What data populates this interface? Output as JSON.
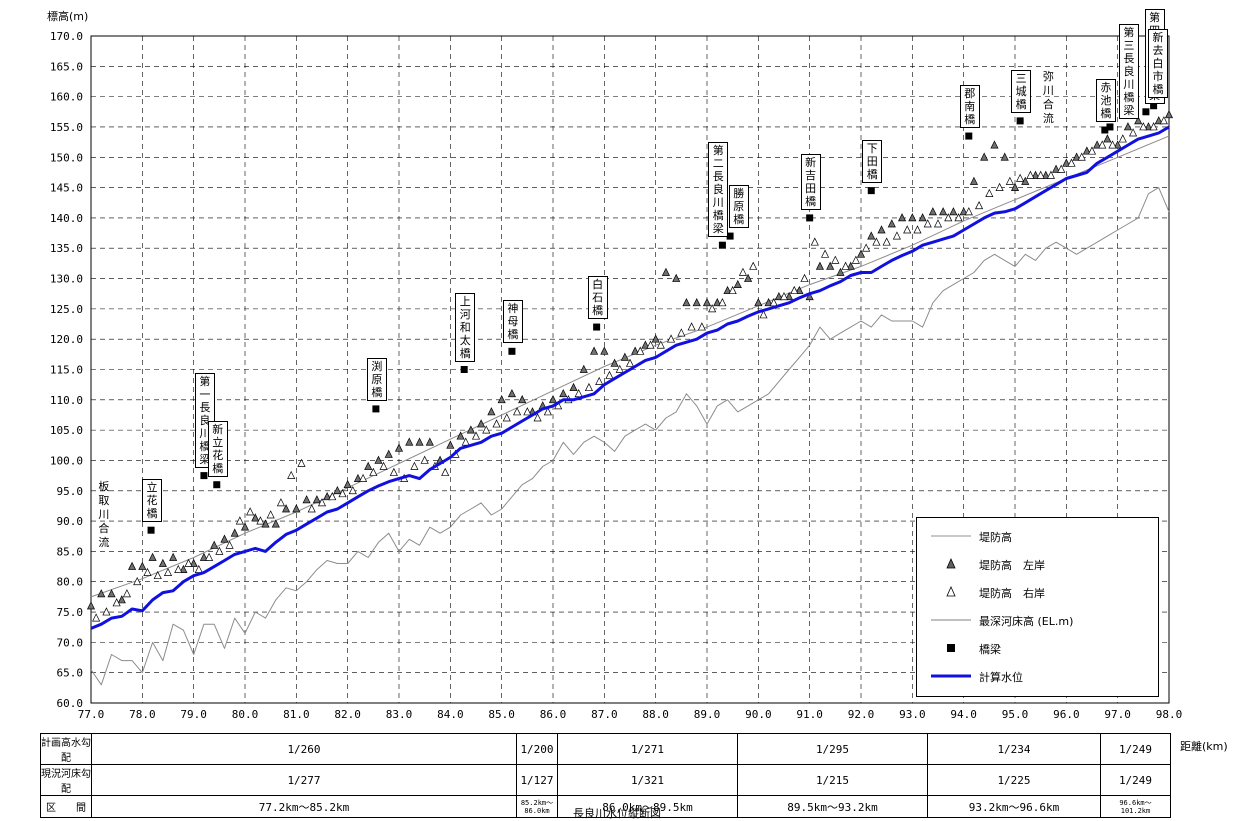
{
  "chart_data": {
    "type": "line",
    "title": "",
    "caption": "長良川水位縦断図",
    "ylabel": "標高(m)",
    "xlabel": "距離(km)",
    "xlim": [
      77.0,
      98.0
    ],
    "ylim": [
      60.0,
      170.0
    ],
    "x_ticks": [
      "77.0",
      "78.0",
      "79.0",
      "80.0",
      "81.0",
      "82.0",
      "83.0",
      "84.0",
      "85.0",
      "86.0",
      "87.0",
      "88.0",
      "89.0",
      "90.0",
      "91.0",
      "92.0",
      "93.0",
      "94.0",
      "95.0",
      "96.0",
      "97.0",
      "98.0"
    ],
    "y_ticks": [
      "60.0",
      "65.0",
      "70.0",
      "75.0",
      "80.0",
      "85.0",
      "90.0",
      "95.0",
      "100.0",
      "105.0",
      "110.0",
      "115.0",
      "120.0",
      "125.0",
      "130.0",
      "135.0",
      "140.0",
      "145.0",
      "150.0",
      "155.0",
      "160.0",
      "165.0",
      "170.0"
    ],
    "grid": true,
    "legend_position": "bottom-right",
    "legend": [
      "堤防高",
      "堤防高　左岸",
      "堤防高　右岸",
      "最深河床高 (EL.m)",
      "橋梁",
      "計算水位"
    ],
    "series": [
      {
        "name": "堤防高",
        "style": "thin-gray-line",
        "x": [
          77.0,
          78.0,
          79.0,
          80.0,
          81.0,
          82.0,
          83.0,
          84.0,
          85.0,
          86.0,
          87.0,
          88.0,
          89.0,
          90.0,
          91.0,
          92.0,
          93.0,
          94.0,
          95.0,
          96.0,
          97.0,
          98.0
        ],
        "y": [
          77.5,
          80.5,
          84.0,
          88.0,
          91.5,
          95.5,
          99.5,
          103.5,
          107.5,
          111.5,
          115.5,
          119.0,
          122.0,
          125.5,
          129.0,
          132.0,
          135.5,
          139.5,
          143.0,
          146.5,
          150.0,
          153.5
        ]
      },
      {
        "name": "堤防高　左岸",
        "style": "filled-triangle",
        "x": [
          77.0,
          77.2,
          77.4,
          77.6,
          77.8,
          78.0,
          78.2,
          78.4,
          78.6,
          78.8,
          79.0,
          79.2,
          79.4,
          79.6,
          79.8,
          80.0,
          80.2,
          80.4,
          80.6,
          80.8,
          81.0,
          81.2,
          81.4,
          81.6,
          81.8,
          82.0,
          82.2,
          82.4,
          82.6,
          82.8,
          83.0,
          83.2,
          83.4,
          83.6,
          83.8,
          84.0,
          84.2,
          84.4,
          84.6,
          84.8,
          85.0,
          85.2,
          85.4,
          85.6,
          85.8,
          86.0,
          86.2,
          86.4,
          86.6,
          86.8,
          87.0,
          87.2,
          87.4,
          87.6,
          87.8,
          88.0,
          88.2,
          88.4,
          88.6,
          88.8,
          89.0,
          89.2,
          89.4,
          89.6,
          89.8,
          90.0,
          90.2,
          90.4,
          90.6,
          90.8,
          91.0,
          91.2,
          91.4,
          91.6,
          91.8,
          92.0,
          92.2,
          92.4,
          92.6,
          92.8,
          93.0,
          93.2,
          93.4,
          93.6,
          93.8,
          94.0,
          94.2,
          94.4,
          94.6,
          94.8,
          95.0,
          95.2,
          95.4,
          95.6,
          95.8,
          96.0,
          96.2,
          96.4,
          96.6,
          96.8,
          97.0,
          97.2,
          97.4,
          97.6,
          97.8,
          98.0
        ],
        "y": [
          76.0,
          78.0,
          78.0,
          77.0,
          82.5,
          82.5,
          84.0,
          83.0,
          84.0,
          82.0,
          83.0,
          84.0,
          86.0,
          87.0,
          88.0,
          89.0,
          90.5,
          89.5,
          89.5,
          92.0,
          92.0,
          93.5,
          93.5,
          94.0,
          95.0,
          96.0,
          97.0,
          99.0,
          100.0,
          101.0,
          102.0,
          103.0,
          103.0,
          103.0,
          100.0,
          102.5,
          104.0,
          105.0,
          106.0,
          108.0,
          110.0,
          111.0,
          110.0,
          108.0,
          109.0,
          110.0,
          111.0,
          112.0,
          115.0,
          118.0,
          118.0,
          116.0,
          117.0,
          118.0,
          119.0,
          120.0,
          131.0,
          130.0,
          126.0,
          126.0,
          126.0,
          126.0,
          128.0,
          129.0,
          130.0,
          126.0,
          126.0,
          127.0,
          127.0,
          128.0,
          127.0,
          132.0,
          132.0,
          131.0,
          132.0,
          134.0,
          137.0,
          138.0,
          139.0,
          140.0,
          140.0,
          140.0,
          141.0,
          141.0,
          141.0,
          141.0,
          146.0,
          150.0,
          152.0,
          150.0,
          145.0,
          146.0,
          147.0,
          147.0,
          148.0,
          149.0,
          150.0,
          151.0,
          152.0,
          153.0,
          152.0,
          155.0,
          156.0,
          155.0,
          156.0,
          157.0
        ]
      },
      {
        "name": "堤防高　右岸",
        "style": "hollow-triangle",
        "x": [
          77.1,
          77.3,
          77.5,
          77.7,
          77.9,
          78.1,
          78.3,
          78.5,
          78.7,
          78.9,
          79.1,
          79.3,
          79.5,
          79.7,
          79.9,
          80.1,
          80.3,
          80.5,
          80.7,
          80.9,
          81.1,
          81.3,
          81.5,
          81.7,
          81.9,
          82.1,
          82.3,
          82.5,
          82.7,
          82.9,
          83.1,
          83.3,
          83.5,
          83.7,
          83.9,
          84.1,
          84.3,
          84.5,
          84.7,
          84.9,
          85.1,
          85.3,
          85.5,
          85.7,
          85.9,
          86.1,
          86.3,
          86.5,
          86.7,
          86.9,
          87.1,
          87.3,
          87.5,
          87.7,
          87.9,
          88.1,
          88.3,
          88.5,
          88.7,
          88.9,
          89.1,
          89.3,
          89.5,
          89.7,
          89.9,
          90.1,
          90.3,
          90.5,
          90.7,
          90.9,
          91.1,
          91.3,
          91.5,
          91.7,
          91.9,
          92.1,
          92.3,
          92.5,
          92.7,
          92.9,
          93.1,
          93.3,
          93.5,
          93.7,
          93.9,
          94.1,
          94.3,
          94.5,
          94.7,
          94.9,
          95.1,
          95.3,
          95.5,
          95.7,
          95.9,
          96.1,
          96.3,
          96.5,
          96.7,
          96.9,
          97.1,
          97.3,
          97.5,
          97.7,
          97.9
        ],
        "y": [
          74.0,
          75.0,
          76.5,
          78.0,
          80.0,
          81.5,
          81.0,
          81.5,
          82.0,
          83.0,
          82.0,
          84.0,
          85.0,
          86.0,
          90.0,
          91.5,
          90.0,
          91.0,
          93.0,
          97.5,
          99.5,
          92.0,
          93.0,
          94.0,
          94.5,
          95.0,
          97.0,
          98.0,
          99.0,
          98.0,
          97.0,
          99.0,
          100.0,
          99.0,
          98.0,
          101.0,
          103.0,
          104.0,
          105.0,
          106.0,
          107.0,
          108.0,
          108.0,
          107.0,
          108.0,
          109.0,
          110.0,
          111.0,
          112.0,
          113.0,
          114.0,
          115.0,
          116.0,
          118.0,
          119.0,
          119.0,
          120.0,
          121.0,
          122.0,
          122.0,
          125.0,
          126.0,
          128.0,
          131.0,
          132.0,
          124.0,
          126.0,
          127.0,
          128.0,
          130.0,
          136.0,
          134.0,
          133.0,
          132.0,
          133.0,
          135.0,
          136.0,
          136.0,
          137.0,
          138.0,
          138.0,
          139.0,
          139.0,
          140.0,
          140.0,
          141.0,
          142.0,
          144.0,
          145.0,
          146.0,
          146.5,
          147.0,
          147.0,
          147.0,
          148.0,
          149.0,
          150.0,
          151.0,
          152.0,
          152.0,
          153.0,
          154.0,
          155.0,
          155.0,
          156.0
        ]
      },
      {
        "name": "最深河床高 (EL.m)",
        "style": "thin-gray-line",
        "x": [
          77.0,
          77.2,
          77.4,
          77.6,
          77.8,
          78.0,
          78.2,
          78.4,
          78.6,
          78.8,
          79.0,
          79.2,
          79.4,
          79.6,
          79.8,
          80.0,
          80.2,
          80.4,
          80.6,
          80.8,
          81.0,
          81.2,
          81.4,
          81.6,
          81.8,
          82.0,
          82.2,
          82.4,
          82.6,
          82.8,
          83.0,
          83.2,
          83.4,
          83.6,
          83.8,
          84.0,
          84.2,
          84.4,
          84.6,
          84.8,
          85.0,
          85.2,
          85.4,
          85.6,
          85.8,
          86.0,
          86.2,
          86.4,
          86.6,
          86.8,
          87.0,
          87.2,
          87.4,
          87.6,
          87.8,
          88.0,
          88.2,
          88.4,
          88.6,
          88.8,
          89.0,
          89.2,
          89.4,
          89.6,
          89.8,
          90.0,
          90.2,
          90.4,
          90.6,
          90.8,
          91.0,
          91.2,
          91.4,
          91.6,
          91.8,
          92.0,
          92.2,
          92.4,
          92.6,
          92.8,
          93.0,
          93.2,
          93.4,
          93.6,
          93.8,
          94.0,
          94.2,
          94.4,
          94.6,
          94.8,
          95.0,
          95.2,
          95.4,
          95.6,
          95.8,
          96.0,
          96.2,
          96.4,
          96.6,
          96.8,
          97.0,
          97.2,
          97.4,
          97.6,
          97.8,
          98.0
        ],
        "y": [
          65.5,
          63.0,
          68.0,
          67.0,
          67.0,
          65.0,
          70.0,
          67.0,
          73.0,
          72.0,
          68.0,
          73.0,
          73.0,
          69.0,
          74.0,
          71.5,
          75.0,
          74.0,
          77.0,
          79.0,
          78.5,
          80.0,
          82.0,
          83.5,
          83.0,
          83.0,
          85.0,
          84.0,
          86.5,
          88.0,
          85.0,
          87.0,
          86.0,
          89.0,
          88.0,
          89.0,
          91.0,
          92.0,
          93.0,
          91.0,
          92.0,
          94.0,
          96.0,
          97.0,
          99.0,
          100.0,
          103.0,
          101.0,
          103.0,
          104.0,
          103.0,
          101.5,
          104.0,
          105.0,
          106.0,
          105.0,
          107.0,
          108.0,
          111.0,
          109.0,
          106.0,
          109.0,
          110.0,
          108.0,
          109.0,
          110.0,
          111.0,
          113.0,
          115.0,
          117.0,
          119.0,
          122.0,
          120.0,
          121.0,
          122.0,
          123.0,
          122.0,
          124.0,
          123.0,
          123.0,
          123.0,
          122.0,
          126.0,
          128.0,
          129.0,
          130.0,
          131.0,
          133.0,
          134.0,
          133.0,
          132.0,
          134.0,
          133.0,
          135.0,
          136.0,
          135.0,
          134.0,
          135.0,
          136.0,
          137.0,
          138.0,
          139.0,
          140.0,
          144.0,
          145.0,
          141.0
        ]
      },
      {
        "name": "橋梁",
        "style": "filled-square",
        "x": [
          78.17,
          79.2,
          79.45,
          82.55,
          84.27,
          85.2,
          86.85,
          89.3,
          89.45,
          91.0,
          92.2,
          94.1,
          95.1,
          96.75,
          96.85,
          97.55,
          97.7
        ],
        "y": [
          88.5,
          97.5,
          96.0,
          108.5,
          115.0,
          118.0,
          122.0,
          135.5,
          137.0,
          140.0,
          144.5,
          153.5,
          156.0,
          154.5,
          155.0,
          157.5,
          158.5
        ]
      },
      {
        "name": "計算水位",
        "style": "thick-blue-line",
        "x": [
          77.0,
          77.2,
          77.4,
          77.6,
          77.8,
          78.0,
          78.2,
          78.4,
          78.6,
          78.8,
          79.0,
          79.2,
          79.4,
          79.6,
          79.8,
          80.0,
          80.2,
          80.4,
          80.6,
          80.8,
          81.0,
          81.2,
          81.4,
          81.6,
          81.8,
          82.0,
          82.2,
          82.4,
          82.6,
          82.8,
          83.0,
          83.2,
          83.4,
          83.6,
          83.8,
          84.0,
          84.2,
          84.4,
          84.6,
          84.8,
          85.0,
          85.2,
          85.4,
          85.6,
          85.8,
          86.0,
          86.2,
          86.4,
          86.6,
          86.8,
          87.0,
          87.2,
          87.4,
          87.6,
          87.8,
          88.0,
          88.2,
          88.4,
          88.6,
          88.8,
          89.0,
          89.2,
          89.4,
          89.6,
          89.8,
          90.0,
          90.2,
          90.4,
          90.6,
          90.8,
          91.0,
          91.2,
          91.4,
          91.6,
          91.8,
          92.0,
          92.2,
          92.4,
          92.6,
          92.8,
          93.0,
          93.2,
          93.4,
          93.6,
          93.8,
          94.0,
          94.2,
          94.4,
          94.6,
          94.8,
          95.0,
          95.2,
          95.4,
          95.6,
          95.8,
          96.0,
          96.2,
          96.4,
          96.6,
          96.8,
          97.0,
          97.2,
          97.4,
          97.6,
          97.8,
          98.0
        ],
        "y": [
          72.3,
          73.0,
          74.0,
          74.3,
          75.5,
          75.2,
          77.0,
          78.2,
          78.5,
          80.0,
          81.0,
          81.5,
          82.5,
          83.5,
          84.5,
          85.0,
          85.5,
          85.0,
          86.5,
          87.8,
          88.5,
          89.5,
          90.5,
          91.5,
          92.0,
          93.0,
          94.0,
          95.0,
          95.8,
          96.5,
          97.0,
          97.5,
          97.0,
          98.5,
          99.5,
          100.5,
          102.0,
          102.5,
          103.0,
          104.0,
          104.5,
          105.5,
          106.5,
          107.5,
          108.5,
          109.0,
          110.0,
          110.0,
          110.5,
          111.0,
          112.5,
          113.5,
          114.5,
          115.5,
          116.5,
          117.0,
          118.0,
          119.0,
          119.5,
          120.0,
          121.0,
          121.5,
          122.5,
          123.0,
          123.8,
          124.5,
          125.0,
          125.5,
          126.0,
          126.8,
          127.5,
          128.0,
          128.8,
          129.5,
          130.5,
          131.0,
          131.0,
          132.0,
          133.0,
          133.8,
          134.5,
          135.5,
          136.0,
          136.5,
          137.0,
          138.0,
          139.0,
          140.0,
          140.8,
          141.0,
          141.5,
          142.5,
          143.5,
          144.5,
          145.5,
          146.5,
          147.0,
          147.5,
          149.0,
          150.0,
          151.0,
          152.0,
          153.0,
          153.5,
          154.0,
          155.0
        ]
      }
    ],
    "bridge_labels": [
      {
        "text": "立\n花\n橋",
        "x": 78.17
      },
      {
        "text": "第\n一\n長\n良\n川\n橋\n梁",
        "x": 79.2
      },
      {
        "text": "新\n立\n花\n橋",
        "x": 79.45
      },
      {
        "text": "渕\n原\n橋",
        "x": 82.55
      },
      {
        "text": "上\n河\n和\n太\n橋",
        "x": 84.27
      },
      {
        "text": "神\n母\n橋",
        "x": 85.2
      },
      {
        "text": "白\n石\n橋",
        "x": 86.85
      },
      {
        "text": "第\n二\n長\n良\n川\n橋\n梁",
        "x": 89.2
      },
      {
        "text": "勝\n原\n橋",
        "x": 89.6
      },
      {
        "text": "新\n吉\n田\n橋",
        "x": 91.0
      },
      {
        "text": "下\n田\n橋",
        "x": 92.2
      },
      {
        "text": "郡\n南\n橋",
        "x": 94.1
      },
      {
        "text": "三\n城\n橋",
        "x": 95.1
      },
      {
        "text": "赤\n池\n橋",
        "x": 96.75
      },
      {
        "text": "第\n三\n長\n良\n川\n橋\n梁",
        "x": 97.2
      },
      {
        "text": "第\n四\n長\n良\n川\n橋\n梁",
        "x": 97.7
      },
      {
        "text": "新\n去\n白\n市\n橋",
        "x": 98.0
      }
    ],
    "confluence_labels": [
      {
        "text": "板\n取\n川\n合\n流",
        "x": 77.25
      },
      {
        "text": "弥\n川\n合\n流",
        "x": 95.65
      }
    ]
  },
  "gradient_table": {
    "rows": [
      {
        "label": "計画高水勾配",
        "cells": [
          "1/260",
          "1/200",
          "1/271",
          "1/295",
          "1/234",
          "1/249"
        ]
      },
      {
        "label": "現況河床勾配",
        "cells": [
          "1/277",
          "1/127",
          "1/321",
          "1/215",
          "1/225",
          "1/249"
        ]
      },
      {
        "label": "区　　間",
        "cells": [
          "77.2km～85.2km",
          "85.2km～\n86.0km",
          "86.0km～89.5km",
          "89.5km～93.2km",
          "93.2km～96.6km",
          "96.6km～\n101.2km"
        ]
      }
    ]
  },
  "colors": {
    "water_level": "#1010e0",
    "bed": "#808080",
    "bank": "#909090",
    "grid": "#000000"
  }
}
